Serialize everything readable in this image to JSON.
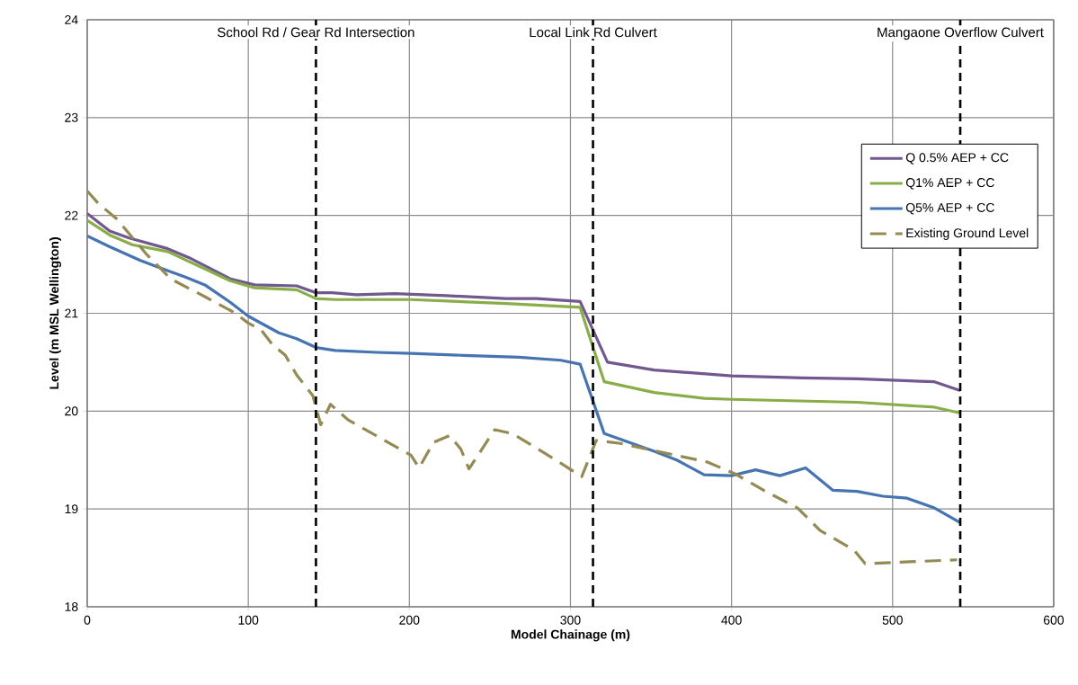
{
  "chart_data": {
    "type": "line",
    "xlabel": "Model Chainage (m)",
    "ylabel": "Level (m MSL Wellington)",
    "xlim": [
      0,
      600
    ],
    "xticks": [
      0,
      100,
      200,
      300,
      400,
      500,
      600
    ],
    "ylim": [
      18,
      24
    ],
    "yticks": [
      18,
      19,
      20,
      21,
      22,
      23,
      24
    ],
    "grid": true,
    "legend": "right",
    "line_style": "solid",
    "series": [
      {
        "name": "Q 0.5% AEP + CC",
        "color": "#71588f",
        "x": [
          0,
          14,
          26,
          50,
          63,
          89,
          104,
          130,
          142,
          152,
          167,
          191,
          223,
          260,
          279,
          306,
          323,
          352,
          400,
          444,
          478,
          526,
          542
        ],
        "values": [
          22.02,
          21.84,
          21.77,
          21.66,
          21.57,
          21.35,
          21.29,
          21.28,
          21.21,
          21.21,
          21.19,
          21.2,
          21.18,
          21.15,
          21.15,
          21.12,
          20.5,
          20.42,
          20.36,
          20.34,
          20.33,
          20.3,
          20.21
        ]
      },
      {
        "name": "Q1% AEP + CC",
        "color": "#89ad48",
        "x": [
          0,
          14,
          28,
          50,
          89,
          104,
          130,
          142,
          154,
          201,
          260,
          306,
          321,
          352,
          383,
          400,
          478,
          526,
          542
        ],
        "values": [
          21.95,
          21.8,
          21.7,
          21.63,
          21.33,
          21.26,
          21.24,
          21.15,
          21.14,
          21.14,
          21.1,
          21.06,
          20.3,
          20.19,
          20.13,
          20.12,
          20.09,
          20.04,
          19.98
        ]
      },
      {
        "name": "Q5% AEP + CC",
        "color": "#4674b0",
        "x": [
          0,
          14,
          33,
          46,
          61,
          73,
          89,
          100,
          119,
          130,
          142,
          154,
          180,
          201,
          234,
          268,
          294,
          306,
          321,
          352,
          366,
          383,
          400,
          415,
          430,
          446,
          463,
          478,
          494,
          509,
          526,
          542
        ],
        "values": [
          21.79,
          21.68,
          21.54,
          21.46,
          21.37,
          21.29,
          21.11,
          20.97,
          20.8,
          20.74,
          20.65,
          20.62,
          20.6,
          20.59,
          20.57,
          20.55,
          20.52,
          20.48,
          19.77,
          19.59,
          19.5,
          19.35,
          19.34,
          19.4,
          19.34,
          19.42,
          19.19,
          19.18,
          19.13,
          19.11,
          19.01,
          18.86
        ]
      },
      {
        "name": "Existing Ground Level",
        "color": "#948a54",
        "line_style": "dashed",
        "x": [
          0,
          7,
          18,
          37,
          52,
          73,
          91,
          100,
          108,
          115,
          123,
          130,
          140,
          145,
          151,
          162,
          190,
          201,
          206,
          215,
          225,
          232,
          237,
          253,
          264,
          292,
          307,
          316,
          331,
          385,
          402,
          420,
          441,
          455,
          476,
          483,
          540
        ],
        "values": [
          22.25,
          22.12,
          21.97,
          21.6,
          21.35,
          21.17,
          21.01,
          20.9,
          20.83,
          20.68,
          20.57,
          20.37,
          20.16,
          19.86,
          20.07,
          19.91,
          19.65,
          19.55,
          19.42,
          19.68,
          19.75,
          19.61,
          19.41,
          19.81,
          19.77,
          19.49,
          19.33,
          19.7,
          19.67,
          19.48,
          19.36,
          19.19,
          19.01,
          18.78,
          18.58,
          18.44,
          18.48
        ]
      }
    ],
    "ref_lines": [
      {
        "axis": "x",
        "value": 142,
        "label": "School Rd / Gear Rd Intersection",
        "color": "#000000",
        "line_style": "dashed"
      },
      {
        "axis": "x",
        "value": 314,
        "label": "Local Link Rd Culvert",
        "color": "#000000",
        "line_style": "dashed"
      },
      {
        "axis": "x",
        "value": 542,
        "label": "Mangaone Overflow Culvert",
        "color": "#000000",
        "line_style": "dashed"
      }
    ]
  }
}
